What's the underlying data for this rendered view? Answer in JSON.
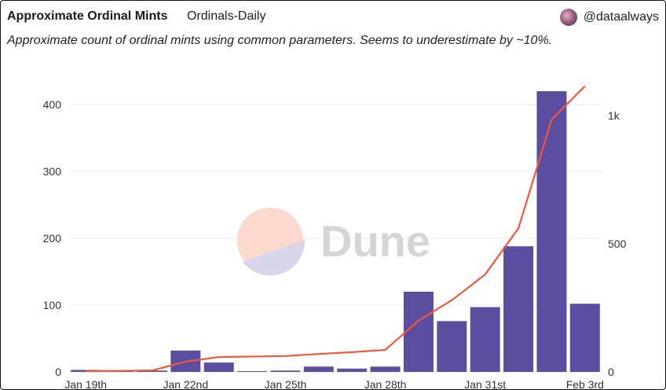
{
  "header": {
    "title": "Approximate Ordinal Mints",
    "source": "Ordinals-Daily",
    "author": "@dataalways",
    "subtitle": "Approximate count of ordinal mints using common parameters. Seems to underestimate by ~10%."
  },
  "watermark": {
    "text": "Dune"
  },
  "colors": {
    "bar": "#5b4ea1",
    "line": "#f0573b",
    "grid": "#e8e8e8"
  },
  "chart_data": {
    "type": "bar",
    "categories": [
      "Jan 19th",
      "Jan 20th",
      "Jan 21st",
      "Jan 22nd",
      "Jan 23rd",
      "Jan 24th",
      "Jan 25th",
      "Jan 26th",
      "Jan 27th",
      "Jan 28th",
      "Jan 29th",
      "Jan 30th",
      "Jan 31st",
      "Feb 1st",
      "Feb 2nd",
      "Feb 3rd"
    ],
    "x_tick_labels": [
      "Jan 19th",
      "Jan 22nd",
      "Jan 25th",
      "Jan 28th",
      "Jan 31st",
      "Feb 3rd"
    ],
    "series": [
      {
        "axis": "left",
        "type": "bar",
        "values": [
          3,
          1,
          2,
          32,
          14,
          0,
          2,
          8,
          5,
          8,
          120,
          76,
          97,
          188,
          420,
          102
        ]
      },
      {
        "axis": "right",
        "type": "line",
        "values": [
          3,
          4,
          6,
          40,
          58,
          60,
          62,
          70,
          77,
          86,
          200,
          280,
          380,
          560,
          985,
          1115
        ]
      }
    ],
    "left_axis": {
      "ylim": [
        0,
        420
      ],
      "ticks": [
        0,
        100,
        200,
        300,
        400
      ],
      "tick_labels": [
        "0",
        "100",
        "200",
        "300",
        "400"
      ]
    },
    "right_axis": {
      "ylim": [
        0,
        1000
      ],
      "ticks": [
        0,
        500,
        1000
      ],
      "tick_labels": [
        "0",
        "500",
        "1k"
      ]
    },
    "grid": true
  }
}
